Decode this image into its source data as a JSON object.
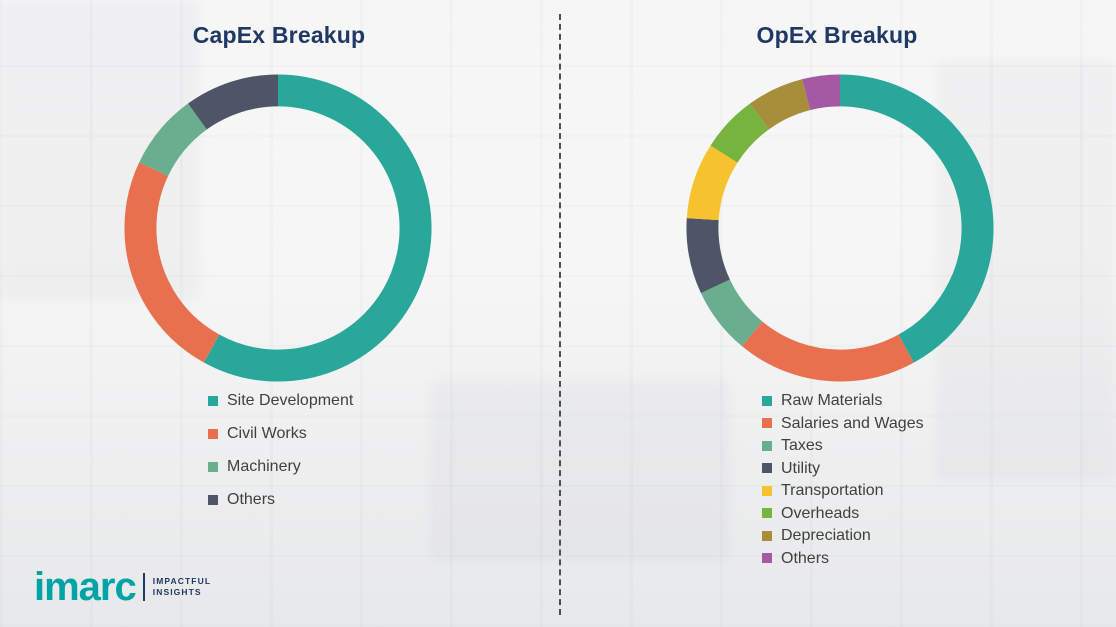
{
  "logo": {
    "brand": "imarc",
    "tagline_line1": "IMPACTFUL",
    "tagline_line2": "INSIGHTS",
    "brand_color": "#00A4A7",
    "tagline_color": "#203864"
  },
  "divider_color": "#4a4f54",
  "title_color": "#1F3864",
  "chart_data": [
    {
      "type": "pie",
      "donut": true,
      "title": "CapEx Breakup",
      "legend_position": "bottom",
      "labels": [
        "Site Development",
        "Civil Works",
        "Machinery",
        "Others"
      ],
      "values": [
        58,
        24,
        8,
        10
      ],
      "colors": [
        "#2AA79B",
        "#E8704F",
        "#69AE8E",
        "#4D5566"
      ]
    },
    {
      "type": "pie",
      "donut": true,
      "title": "OpEx Breakup",
      "legend_position": "bottom",
      "labels": [
        "Raw Materials",
        "Salaries and Wages",
        "Taxes",
        "Utility",
        "Transportation",
        "Overheads",
        "Depreciation",
        "Others"
      ],
      "values": [
        42,
        19,
        7,
        8,
        8,
        6,
        6,
        4
      ],
      "colors": [
        "#2AA79B",
        "#E8704F",
        "#69AE8E",
        "#4D5566",
        "#F6C22E",
        "#77B43F",
        "#A78E3B",
        "#A459A2"
      ]
    }
  ]
}
